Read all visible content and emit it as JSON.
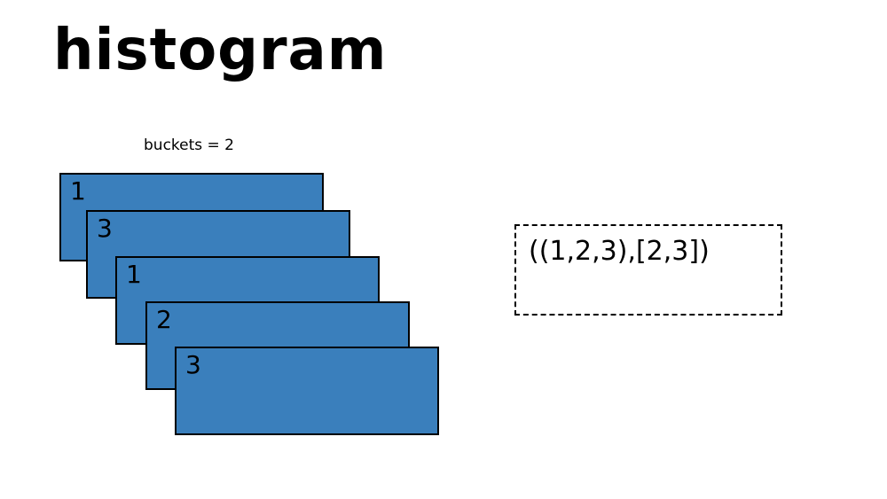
{
  "slide": {
    "title": "histogram",
    "buckets_label": "buckets = 2"
  },
  "diagram": {
    "cards": [
      {
        "value": "1"
      },
      {
        "value": "3"
      },
      {
        "value": "1"
      },
      {
        "value": "2"
      },
      {
        "value": "3"
      }
    ],
    "result": "((1,2,3),[2,3])"
  },
  "colors": {
    "card_fill": "#3a7fbc",
    "outline": "#000000",
    "background": "#ffffff"
  }
}
